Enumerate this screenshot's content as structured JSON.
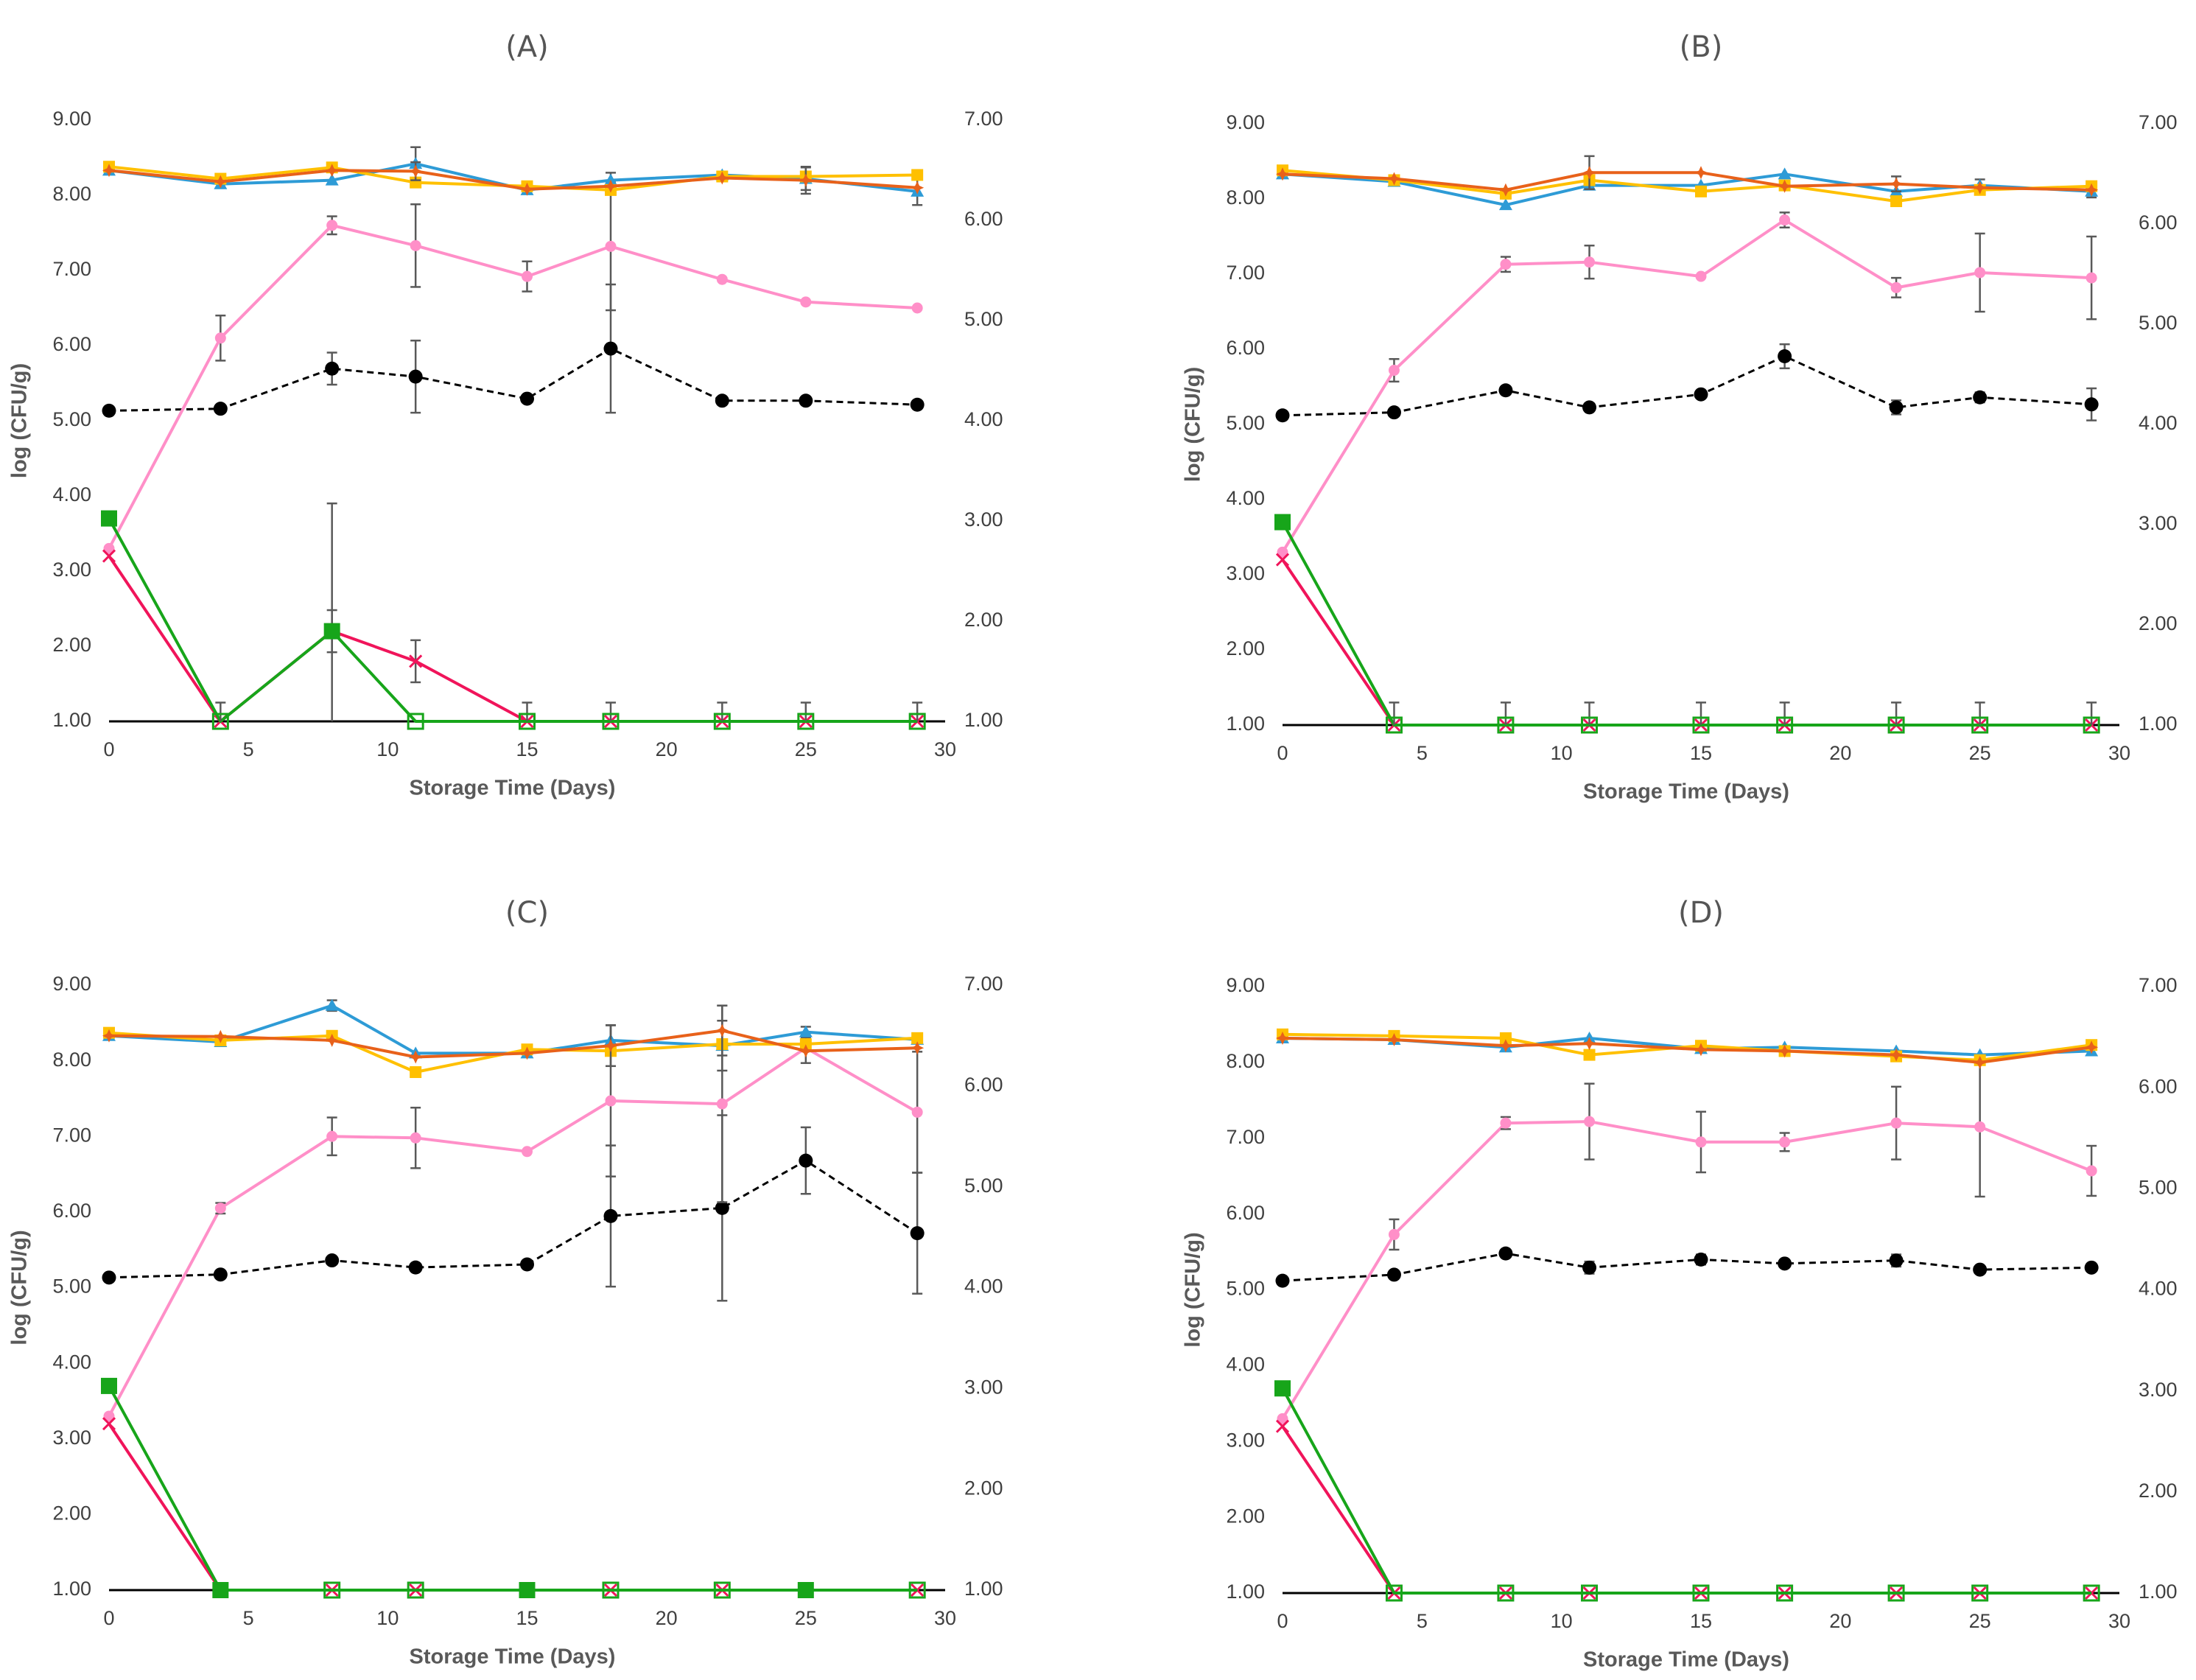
{
  "colors": {
    "blue": "#2E9BD6",
    "yellow": "#FFC000",
    "orange": "#E8611A",
    "pink": "#FF8FC8",
    "black": "#000000",
    "green": "#17A51A",
    "red": "#F0145A"
  },
  "chart_data": [
    {
      "type": "line",
      "title": "(A)",
      "xlabel": "Storage Time (Days)",
      "ylabel": "log (CFU/g)",
      "xlim": [
        0,
        30
      ],
      "ylim": [
        1,
        9
      ],
      "y2lim": [
        1,
        7
      ],
      "xticks": [
        "0",
        "5",
        "10",
        "15",
        "20",
        "25",
        "30"
      ],
      "yticks": [
        "1.00",
        "2.00",
        "3.00",
        "4.00",
        "5.00",
        "6.00",
        "7.00",
        "8.00",
        "9.00"
      ],
      "y2ticks": [
        "1.00",
        "2.00",
        "3.00",
        "4.00",
        "5.00",
        "6.00",
        "7.00"
      ],
      "x": [
        0,
        4,
        8,
        11,
        15,
        18,
        22,
        25,
        29
      ],
      "series": [
        {
          "name": "blue",
          "marker": "triangle",
          "axis": "left",
          "values": [
            8.33,
            8.15,
            8.2,
            8.42,
            8.07,
            8.2,
            8.27,
            8.22,
            8.05
          ],
          "errors": [
            0,
            0,
            0,
            0.22,
            0,
            0.1,
            0,
            0.15,
            0.18
          ]
        },
        {
          "name": "yellow",
          "marker": "square",
          "axis": "left",
          "values": [
            8.38,
            8.22,
            8.37,
            8.17,
            8.12,
            8.07,
            8.25,
            8.25,
            8.27
          ],
          "errors": [
            0,
            0,
            0,
            0,
            0,
            0,
            0,
            0,
            0
          ]
        },
        {
          "name": "orange",
          "marker": "star",
          "axis": "left",
          "values": [
            8.33,
            8.18,
            8.33,
            8.32,
            8.08,
            8.12,
            8.23,
            8.2,
            8.1
          ],
          "errors": [
            0,
            0,
            0,
            0.12,
            0,
            0,
            0,
            0.18,
            0
          ]
        },
        {
          "name": "pink",
          "marker": "circle-small",
          "axis": "left",
          "values": [
            3.3,
            6.1,
            7.6,
            7.33,
            6.92,
            7.32,
            6.88,
            6.58,
            6.5
          ],
          "errors": [
            0,
            0.3,
            0.12,
            0.55,
            0.2,
            0.85,
            0,
            0,
            0
          ]
        },
        {
          "name": "black",
          "marker": "circle",
          "axis": "right",
          "dashed": true,
          "values": [
            4.1,
            4.12,
            4.52,
            4.44,
            4.22,
            4.72,
            4.2,
            4.2,
            4.16
          ],
          "errors": [
            0,
            0,
            0.16,
            0.36,
            0,
            0.64,
            0,
            0,
            0
          ]
        },
        {
          "name": "green",
          "marker": "square-big",
          "axis": "left",
          "values": [
            3.7,
            1.0,
            2.2,
            1.0,
            1.0,
            1.0,
            1.0,
            1.0,
            1.0
          ],
          "errors": [
            0,
            0.25,
            1.7,
            0,
            0.25,
            0.25,
            0.25,
            0.25,
            0.25
          ]
        },
        {
          "name": "red",
          "marker": "x",
          "axis": "left",
          "values": [
            3.2,
            1.0,
            2.2,
            1.8,
            1.0,
            1.0,
            1.0,
            1.0,
            1.0
          ],
          "errors": [
            0,
            0,
            0.28,
            0.28,
            0,
            0,
            0,
            0,
            0
          ]
        }
      ]
    },
    {
      "type": "line",
      "title": "(B)",
      "xlabel": "Storage Time (Days)",
      "ylabel": "log (CFU/g)",
      "xlim": [
        0,
        30
      ],
      "ylim": [
        1,
        9
      ],
      "y2lim": [
        1,
        7
      ],
      "xticks": [
        "0",
        "5",
        "10",
        "15",
        "20",
        "25",
        "30"
      ],
      "yticks": [
        "1.00",
        "2.00",
        "3.00",
        "4.00",
        "5.00",
        "6.00",
        "7.00",
        "8.00",
        "9.00"
      ],
      "y2ticks": [
        "1.00",
        "2.00",
        "3.00",
        "4.00",
        "5.00",
        "6.00",
        "7.00"
      ],
      "x": [
        0,
        4,
        8,
        11,
        15,
        18,
        22,
        25,
        29
      ],
      "series": [
        {
          "name": "blue",
          "marker": "triangle",
          "axis": "left",
          "values": [
            8.33,
            8.23,
            7.92,
            8.18,
            8.18,
            8.33,
            8.1,
            8.18,
            8.1
          ],
          "errors": [
            0,
            0,
            0,
            0,
            0,
            0,
            0,
            0.08,
            0.08
          ]
        },
        {
          "name": "yellow",
          "marker": "square",
          "axis": "left",
          "values": [
            8.38,
            8.25,
            8.07,
            8.25,
            8.1,
            8.18,
            7.97,
            8.12,
            8.17
          ],
          "errors": [
            0,
            0,
            0,
            0,
            0,
            0,
            0,
            0,
            0
          ]
        },
        {
          "name": "orange",
          "marker": "star",
          "axis": "left",
          "values": [
            8.33,
            8.27,
            8.12,
            8.35,
            8.35,
            8.17,
            8.2,
            8.15,
            8.12
          ],
          "errors": [
            0,
            0,
            0,
            0.22,
            0,
            0,
            0.1,
            0,
            0
          ]
        },
        {
          "name": "pink",
          "marker": "circle-small",
          "axis": "left",
          "values": [
            3.3,
            5.72,
            7.13,
            7.16,
            6.97,
            7.72,
            6.82,
            7.02,
            6.95
          ],
          "errors": [
            0,
            0.15,
            0.1,
            0.22,
            0,
            0.1,
            0.13,
            0.52,
            0.55
          ]
        },
        {
          "name": "black",
          "marker": "circle",
          "axis": "right",
          "dashed": true,
          "values": [
            4.09,
            4.12,
            4.34,
            4.17,
            4.3,
            4.68,
            4.17,
            4.27,
            4.2
          ],
          "errors": [
            0,
            0,
            0,
            0,
            0,
            0.12,
            0.07,
            0.05,
            0.16
          ]
        },
        {
          "name": "green",
          "marker": "square-big",
          "axis": "left",
          "values": [
            3.7,
            1.0,
            1.0,
            1.0,
            1.0,
            1.0,
            1.0,
            1.0,
            1.0
          ],
          "errors": [
            0,
            0.3,
            0.3,
            0.3,
            0.3,
            0.3,
            0.3,
            0.3,
            0.3
          ]
        },
        {
          "name": "red",
          "marker": "x",
          "axis": "left",
          "values": [
            3.2,
            1.0,
            1.0,
            1.0,
            1.0,
            1.0,
            1.0,
            1.0,
            1.0
          ],
          "errors": [
            0,
            0,
            0,
            0,
            0,
            0,
            0,
            0,
            0
          ]
        }
      ]
    },
    {
      "type": "line",
      "title": "(C)",
      "xlabel": "Storage Time (Days)",
      "ylabel": "log (CFU/g)",
      "xlim": [
        0,
        30
      ],
      "ylim": [
        1,
        9
      ],
      "y2lim": [
        1,
        7
      ],
      "xticks": [
        "0",
        "5",
        "10",
        "15",
        "20",
        "25",
        "30"
      ],
      "yticks": [
        "1.00",
        "2.00",
        "3.00",
        "4.00",
        "5.00",
        "6.00",
        "7.00",
        "8.00",
        "9.00"
      ],
      "y2ticks": [
        "1.00",
        "2.00",
        "3.00",
        "4.00",
        "5.00",
        "6.00",
        "7.00"
      ],
      "x": [
        0,
        4,
        8,
        11,
        15,
        18,
        22,
        25,
        29
      ],
      "series": [
        {
          "name": "blue",
          "marker": "triangle",
          "axis": "left",
          "values": [
            8.33,
            8.25,
            8.73,
            8.1,
            8.1,
            8.27,
            8.2,
            8.38,
            8.28
          ],
          "errors": [
            0,
            0,
            0.07,
            0,
            0,
            0.2,
            0.33,
            0.07,
            0
          ]
        },
        {
          "name": "yellow",
          "marker": "square",
          "axis": "left",
          "values": [
            8.37,
            8.27,
            8.33,
            7.85,
            8.15,
            8.13,
            8.22,
            8.22,
            8.3
          ],
          "errors": [
            0,
            0,
            0,
            0,
            0,
            0,
            0,
            0,
            0
          ]
        },
        {
          "name": "orange",
          "marker": "star",
          "axis": "left",
          "values": [
            8.33,
            8.32,
            8.27,
            8.05,
            8.1,
            8.2,
            8.4,
            8.13,
            8.17
          ],
          "errors": [
            0,
            0,
            0,
            0,
            0,
            0.27,
            0.33,
            0,
            0
          ]
        },
        {
          "name": "pink",
          "marker": "circle-small",
          "axis": "left",
          "values": [
            3.3,
            6.05,
            7.0,
            6.98,
            6.8,
            7.47,
            7.43,
            8.17,
            7.32
          ],
          "errors": [
            0,
            0.07,
            0.25,
            0.4,
            0,
            1.0,
            1.3,
            0.2,
            0.8
          ]
        },
        {
          "name": "black",
          "marker": "circle",
          "axis": "right",
          "dashed": true,
          "values": [
            4.1,
            4.13,
            4.27,
            4.2,
            4.23,
            4.71,
            4.79,
            5.26,
            4.54
          ],
          "errors": [
            0,
            0,
            0,
            0,
            0,
            0.7,
            0.92,
            0.33,
            0.6
          ]
        },
        {
          "name": "green",
          "marker": "square-big",
          "axis": "left",
          "values": [
            3.7,
            1.0,
            1.0,
            1.0,
            1.0,
            1.0,
            1.0,
            1.0,
            1.0
          ],
          "errors": [
            0,
            0,
            0,
            0,
            0,
            0,
            0,
            0,
            0
          ]
        },
        {
          "name": "red",
          "marker": "x",
          "axis": "left",
          "values": [
            3.2,
            1.0,
            1.0,
            1.0,
            1.0,
            1.0,
            1.0,
            1.0,
            1.0
          ],
          "errors": [
            0,
            0,
            0,
            0,
            0,
            0,
            0,
            0,
            0
          ]
        }
      ]
    },
    {
      "type": "line",
      "title": "(D)",
      "xlabel": "Storage Time (Days)",
      "ylabel": "log (CFU/g)",
      "xlim": [
        0,
        30
      ],
      "ylim": [
        1,
        9
      ],
      "y2lim": [
        1,
        7
      ],
      "xticks": [
        "0",
        "5",
        "10",
        "15",
        "20",
        "25",
        "30"
      ],
      "yticks": [
        "1.00",
        "2.00",
        "3.00",
        "4.00",
        "5.00",
        "6.00",
        "7.00",
        "8.00",
        "9.00"
      ],
      "y2ticks": [
        "1.00",
        "2.00",
        "3.00",
        "4.00",
        "5.00",
        "6.00",
        "7.00"
      ],
      "x": [
        0,
        4,
        8,
        11,
        15,
        18,
        22,
        25,
        29
      ],
      "series": [
        {
          "name": "blue",
          "marker": "triangle",
          "axis": "left",
          "values": [
            8.32,
            8.3,
            8.2,
            8.32,
            8.18,
            8.2,
            8.15,
            8.1,
            8.15
          ],
          "errors": [
            0,
            0,
            0,
            0,
            0,
            0,
            0,
            0,
            0
          ]
        },
        {
          "name": "yellow",
          "marker": "square",
          "axis": "left",
          "values": [
            8.37,
            8.35,
            8.32,
            8.1,
            8.22,
            8.15,
            8.08,
            8.03,
            8.23
          ],
          "errors": [
            0,
            0,
            0,
            0,
            0,
            0,
            0,
            0,
            0
          ]
        },
        {
          "name": "orange",
          "marker": "star",
          "axis": "left",
          "values": [
            8.32,
            8.3,
            8.22,
            8.25,
            8.17,
            8.15,
            8.1,
            8.0,
            8.2
          ],
          "errors": [
            0,
            0,
            0,
            0,
            0,
            0,
            0,
            0,
            0
          ]
        },
        {
          "name": "pink",
          "marker": "circle-small",
          "axis": "left",
          "values": [
            3.3,
            5.73,
            7.2,
            7.22,
            6.95,
            6.95,
            7.2,
            7.15,
            6.57
          ],
          "errors": [
            0,
            0.2,
            0.08,
            0.5,
            0.4,
            0.12,
            0.48,
            0.92,
            0.33
          ]
        },
        {
          "name": "black",
          "marker": "circle",
          "axis": "right",
          "dashed": true,
          "values": [
            4.09,
            4.15,
            4.36,
            4.22,
            4.3,
            4.26,
            4.29,
            4.2,
            4.22
          ],
          "errors": [
            0,
            0,
            0,
            0.06,
            0.05,
            0,
            0.06,
            0,
            0
          ]
        },
        {
          "name": "green",
          "marker": "square-big",
          "axis": "left",
          "values": [
            3.7,
            1.0,
            1.0,
            1.0,
            1.0,
            1.0,
            1.0,
            1.0,
            1.0
          ],
          "errors": [
            0,
            0,
            0,
            0,
            0,
            0,
            0,
            0,
            0
          ]
        },
        {
          "name": "red",
          "marker": "x",
          "axis": "left",
          "values": [
            3.2,
            1.0,
            1.0,
            1.0,
            1.0,
            1.0,
            1.0,
            1.0,
            1.0
          ],
          "errors": [
            0,
            0,
            0,
            0,
            0,
            0,
            0,
            0,
            0
          ]
        }
      ]
    }
  ]
}
